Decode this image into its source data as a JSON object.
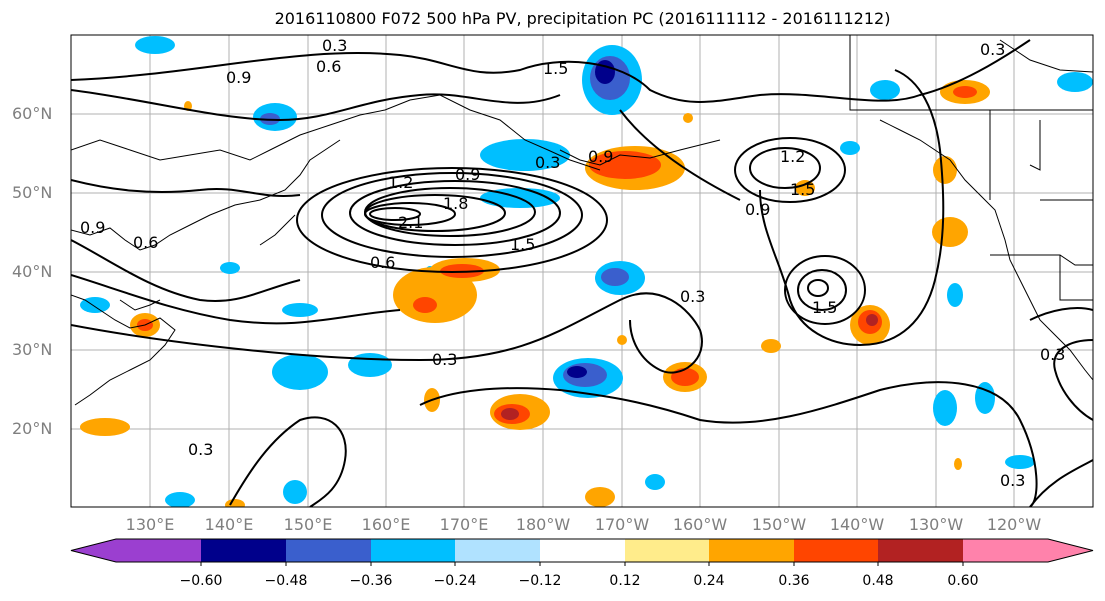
{
  "title": "2016110800 F072 500 hPa PV, precipitation PC (2016111112 - 2016111212)",
  "lat_labels": [
    "60°N",
    "50°N",
    "40°N",
    "30°N",
    "20°N"
  ],
  "lon_labels": [
    "130°E",
    "140°E",
    "150°E",
    "160°E",
    "170°E",
    "180°W",
    "170°W",
    "160°W",
    "150°W",
    "140°W",
    "130°W",
    "120°W"
  ],
  "pv_contour_labels": [
    "0.3",
    "0.6",
    "0.9",
    "1.2",
    "1.5",
    "1.8",
    "2.1"
  ],
  "colorbar": {
    "ticks": [
      "−0.60",
      "−0.48",
      "−0.36",
      "−0.24",
      "−0.12",
      "0.12",
      "0.24",
      "0.36",
      "0.48",
      "0.60"
    ],
    "colors": [
      "#9b3fd0",
      "#00008b",
      "#3a5fcd",
      "#00bfff",
      "#b0e2ff",
      "#ffffff",
      "#ffec8b",
      "#ffa500",
      "#ff4500",
      "#b22222",
      "#ff82ab"
    ]
  }
}
